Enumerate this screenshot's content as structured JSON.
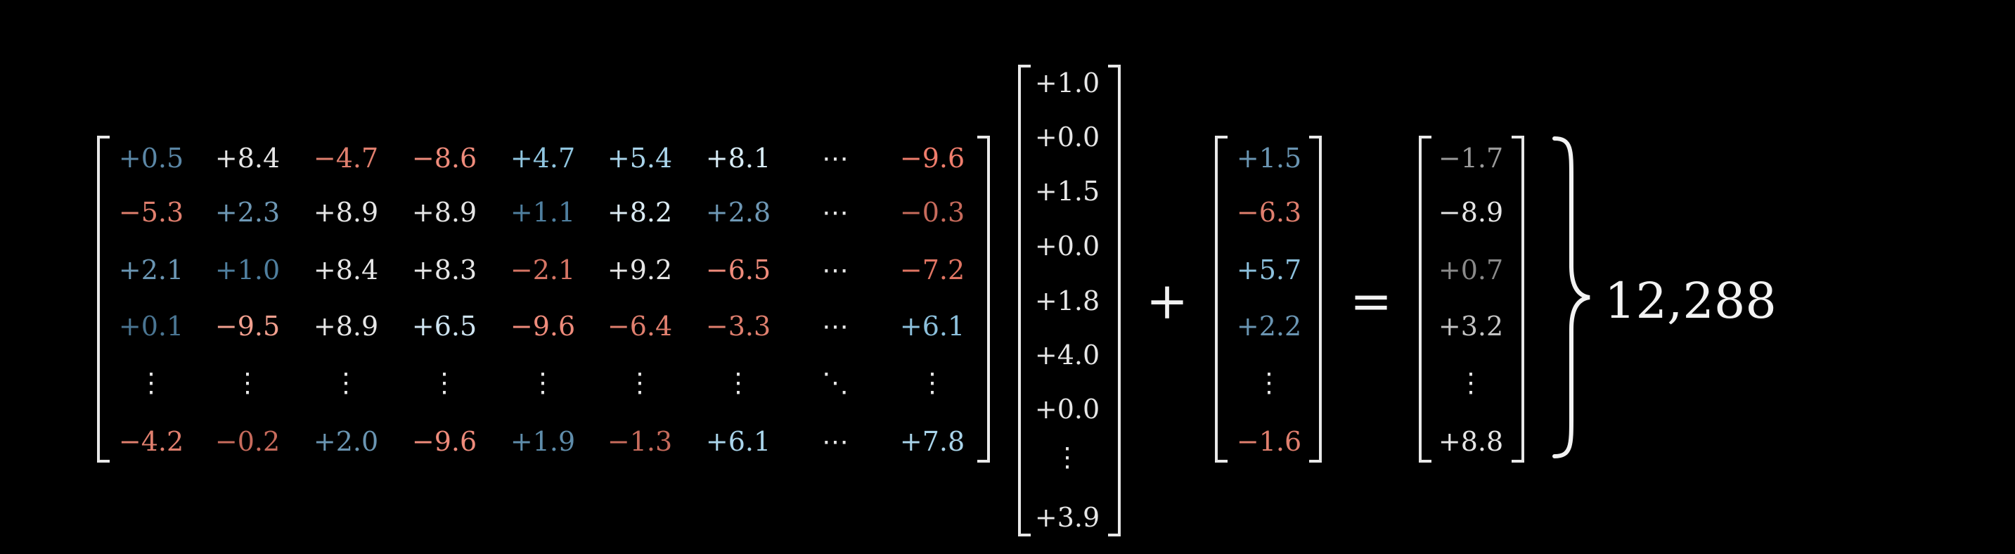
{
  "weight_matrix": {
    "rows": [
      [
        {
          "t": "+0.5",
          "c": "#5b87a6"
        },
        {
          "t": "+8.4",
          "c": "#e6e6e6"
        },
        {
          "t": "−4.7",
          "c": "#e07f6e"
        },
        {
          "t": "−8.6",
          "c": "#ef8b7b"
        },
        {
          "t": "+4.7",
          "c": "#8fc5df"
        },
        {
          "t": "+5.4",
          "c": "#a9d4ea"
        },
        {
          "t": "+8.1",
          "c": "#d7ebf5"
        },
        {
          "t": "⋯",
          "c": "#e6e6e6"
        },
        {
          "t": "−9.6",
          "c": "#ef7d6c"
        }
      ],
      [
        {
          "t": "−5.3",
          "c": "#e07f6e"
        },
        {
          "t": "+2.3",
          "c": "#6e98b5"
        },
        {
          "t": "+8.9",
          "c": "#e6e6e6"
        },
        {
          "t": "+8.9",
          "c": "#e6e6e6"
        },
        {
          "t": "+1.1",
          "c": "#4f7f9f"
        },
        {
          "t": "+8.2",
          "c": "#dcecf5"
        },
        {
          "t": "+2.8",
          "c": "#6e98b5"
        },
        {
          "t": "⋯",
          "c": "#e6e6e6"
        },
        {
          "t": "−0.3",
          "c": "#c76b5c"
        }
      ],
      [
        {
          "t": "+2.1",
          "c": "#6a95b2"
        },
        {
          "t": "+1.0",
          "c": "#4f7f9f"
        },
        {
          "t": "+8.4",
          "c": "#e6e6e6"
        },
        {
          "t": "+8.3",
          "c": "#e6e6e6"
        },
        {
          "t": "−2.1",
          "c": "#d67565"
        },
        {
          "t": "+9.2",
          "c": "#e6e6e6"
        },
        {
          "t": "−6.5",
          "c": "#ef8b7b"
        },
        {
          "t": "⋯",
          "c": "#e6e6e6"
        },
        {
          "t": "−7.2",
          "c": "#e07563"
        }
      ],
      [
        {
          "t": "+0.1",
          "c": "#4a7592"
        },
        {
          "t": "−9.5",
          "c": "#f2a08f"
        },
        {
          "t": "+8.9",
          "c": "#e6e6e6"
        },
        {
          "t": "+6.5",
          "c": "#cfe5f2"
        },
        {
          "t": "−9.6",
          "c": "#ef8b7b"
        },
        {
          "t": "−6.4",
          "c": "#e07f6e"
        },
        {
          "t": "−3.3",
          "c": "#e07f6e"
        },
        {
          "t": "⋯",
          "c": "#e6e6e6"
        },
        {
          "t": "+6.1",
          "c": "#8cc0dc"
        }
      ],
      [
        {
          "t": "⋮",
          "c": "#e6e6e6"
        },
        {
          "t": "⋮",
          "c": "#e6e6e6"
        },
        {
          "t": "⋮",
          "c": "#e6e6e6"
        },
        {
          "t": "⋮",
          "c": "#e6e6e6"
        },
        {
          "t": "⋮",
          "c": "#e6e6e6"
        },
        {
          "t": "⋮",
          "c": "#e6e6e6"
        },
        {
          "t": "⋮",
          "c": "#e6e6e6"
        },
        {
          "t": "⋱",
          "c": "#e6e6e6"
        },
        {
          "t": "⋮",
          "c": "#e6e6e6"
        }
      ],
      [
        {
          "t": "−4.2",
          "c": "#e07f6e"
        },
        {
          "t": "−0.2",
          "c": "#c76b5c"
        },
        {
          "t": "+2.0",
          "c": "#6a95b2"
        },
        {
          "t": "−9.6",
          "c": "#ef8b7b"
        },
        {
          "t": "+1.9",
          "c": "#5f8dab"
        },
        {
          "t": "−1.3",
          "c": "#c76b5c"
        },
        {
          "t": "+6.1",
          "c": "#a9d4ea"
        },
        {
          "t": "⋯",
          "c": "#e6e6e6"
        },
        {
          "t": "+7.8",
          "c": "#a9d4ea"
        }
      ]
    ]
  },
  "input_vector": {
    "values": [
      "+1.0",
      "+0.0",
      "+1.5",
      "+0.0",
      "+1.8",
      "+4.0",
      "+0.0",
      "⋮",
      "+3.9"
    ],
    "color": "#e6e6e6"
  },
  "plus_sign": "+",
  "bias_vector": {
    "values": [
      {
        "t": "+1.5",
        "c": "#6a95b2"
      },
      {
        "t": "−6.3",
        "c": "#e07f6e"
      },
      {
        "t": "+5.7",
        "c": "#8cc0dc"
      },
      {
        "t": "+2.2",
        "c": "#6a95b2"
      },
      {
        "t": "⋮",
        "c": "#e6e6e6"
      },
      {
        "t": "−1.6",
        "c": "#e07f6e"
      }
    ]
  },
  "equals_sign": "=",
  "output_vector": {
    "values": [
      {
        "t": "−1.7",
        "c": "#9a9a9a"
      },
      {
        "t": "−8.9",
        "c": "#e6e6e6"
      },
      {
        "t": "+0.7",
        "c": "#8a8a8a"
      },
      {
        "t": "+3.2",
        "c": "#c4c4c4"
      },
      {
        "t": "⋮",
        "c": "#e6e6e6"
      },
      {
        "t": "+8.8",
        "c": "#e6e6e6"
      }
    ]
  },
  "dimension_label": "12,288"
}
